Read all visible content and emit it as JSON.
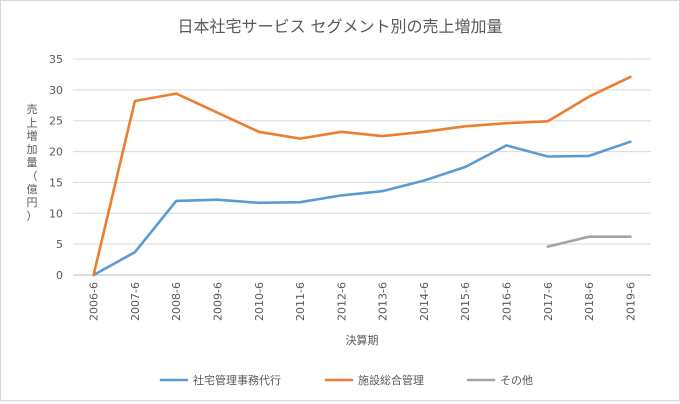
{
  "chart_data": {
    "type": "line",
    "title": "日本社宅サービス セグメント別の売上増加量",
    "xlabel": "決算期",
    "ylabel": "売上増加量（億円）",
    "ylim": [
      0,
      35
    ],
    "yticks": [
      0,
      5,
      10,
      15,
      20,
      25,
      30,
      35
    ],
    "grid": true,
    "legend_position": "bottom",
    "categories": [
      "2006-6",
      "2007-6",
      "2008-6",
      "2009-6",
      "2010-6",
      "2011-6",
      "2012-6",
      "2013-6",
      "2014-6",
      "2015-6",
      "2016-6",
      "2017-6",
      "2018-6",
      "2019-6"
    ],
    "series": [
      {
        "name": "社宅管理事務代行",
        "color": "#5b9bd5",
        "values": [
          0,
          3.7,
          12.0,
          12.2,
          11.7,
          11.8,
          12.9,
          13.6,
          15.3,
          17.5,
          21.0,
          19.2,
          19.3,
          21.6
        ]
      },
      {
        "name": "施設総合管理",
        "color": "#ed7d31",
        "values": [
          0,
          28.2,
          29.4,
          26.3,
          23.2,
          22.1,
          23.2,
          22.5,
          23.2,
          24.1,
          24.6,
          24.9,
          28.9,
          32.1
        ]
      },
      {
        "name": "その他",
        "color": "#a5a5a5",
        "values": [
          null,
          null,
          null,
          null,
          null,
          null,
          null,
          null,
          null,
          null,
          null,
          4.6,
          6.2,
          6.2
        ]
      }
    ]
  }
}
